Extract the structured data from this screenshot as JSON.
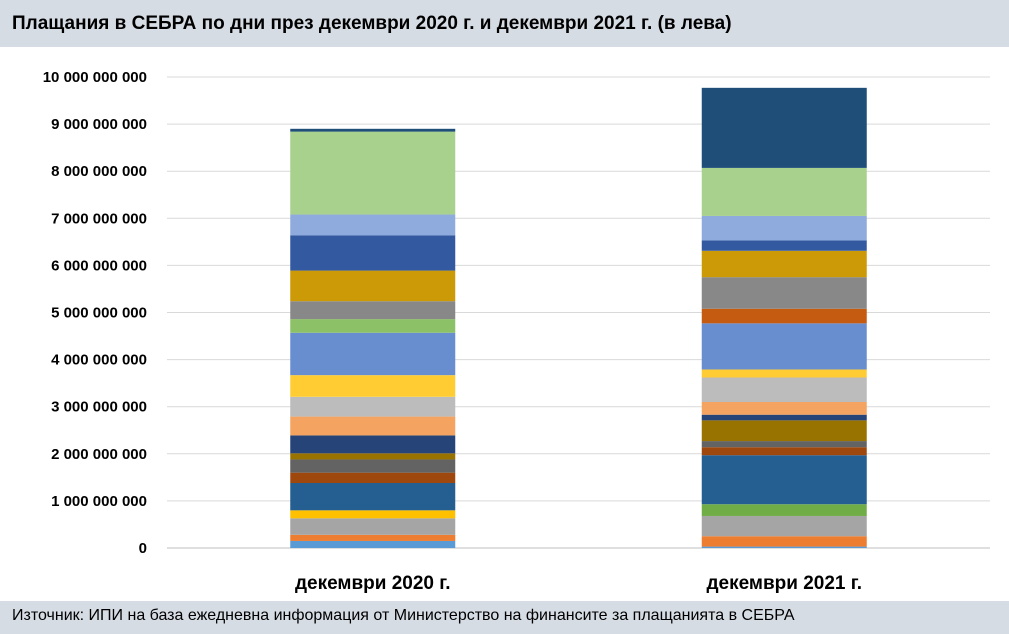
{
  "header": {
    "title": "Плащания в СЕБРА по дни през декември 2020 г. и декември 2021 г. (в лева)"
  },
  "footer": {
    "source": "Източник: ИПИ на база ежедневна информация от Министерство на финансите за плащанията в СЕБРА"
  },
  "chart_data": {
    "type": "bar",
    "stacked": true,
    "title": "Плащания в СЕБРА по дни през декември 2020 г. и декември 2021 г. (в лева)",
    "categories": [
      "декември 2020 г.",
      "декември 2021 г."
    ],
    "ylim": [
      0,
      10000000000
    ],
    "yticks": [
      0,
      1000000000,
      2000000000,
      3000000000,
      4000000000,
      5000000000,
      6000000000,
      7000000000,
      8000000000,
      9000000000,
      10000000000
    ],
    "ytick_labels": [
      "0",
      "1 000 000 000",
      "2 000 000 000",
      "3 000 000 000",
      "4 000 000 000",
      "5 000 000 000",
      "6 000 000 000",
      "7 000 000 000",
      "8 000 000 000",
      "9 000 000 000",
      "10 000 000 000"
    ],
    "grid": true,
    "legend": "none",
    "stacks": [
      {
        "category": "декември 2020 г.",
        "segments": [
          {
            "value": 150000000,
            "color": "#5b9bd5"
          },
          {
            "value": 130000000,
            "color": "#ed7d31"
          },
          {
            "value": 350000000,
            "color": "#a5a5a5"
          },
          {
            "value": 170000000,
            "color": "#ffc000"
          },
          {
            "value": 580000000,
            "color": "#255e91"
          },
          {
            "value": 220000000,
            "color": "#9e480e"
          },
          {
            "value": 280000000,
            "color": "#636363"
          },
          {
            "value": 130000000,
            "color": "#997300"
          },
          {
            "value": 380000000,
            "color": "#264478"
          },
          {
            "value": 400000000,
            "color": "#f4a460"
          },
          {
            "value": 420000000,
            "color": "#bcbcbc"
          },
          {
            "value": 460000000,
            "color": "#ffcd33"
          },
          {
            "value": 900000000,
            "color": "#698ed0"
          },
          {
            "value": 290000000,
            "color": "#8cc168"
          },
          {
            "value": 380000000,
            "color": "#888888"
          },
          {
            "value": 650000000,
            "color": "#cc9a06"
          },
          {
            "value": 750000000,
            "color": "#335aa1"
          },
          {
            "value": 440000000,
            "color": "#8faadc"
          },
          {
            "value": 1760000000,
            "color": "#a9d18e"
          },
          {
            "value": 60000000,
            "color": "#1f4e79"
          }
        ]
      },
      {
        "category": "декември 2021 г.",
        "segments": [
          {
            "value": 30000000,
            "color": "#5b9bd5"
          },
          {
            "value": 220000000,
            "color": "#ed7d31"
          },
          {
            "value": 430000000,
            "color": "#a5a5a5"
          },
          {
            "value": 250000000,
            "color": "#70ad47"
          },
          {
            "value": 1040000000,
            "color": "#255e91"
          },
          {
            "value": 170000000,
            "color": "#9e480e"
          },
          {
            "value": 130000000,
            "color": "#636363"
          },
          {
            "value": 440000000,
            "color": "#997300"
          },
          {
            "value": 120000000,
            "color": "#264478"
          },
          {
            "value": 270000000,
            "color": "#f4a460"
          },
          {
            "value": 520000000,
            "color": "#bcbcbc"
          },
          {
            "value": 170000000,
            "color": "#ffcd33"
          },
          {
            "value": 980000000,
            "color": "#698ed0"
          },
          {
            "value": 310000000,
            "color": "#c55a11"
          },
          {
            "value": 670000000,
            "color": "#888888"
          },
          {
            "value": 560000000,
            "color": "#cc9a06"
          },
          {
            "value": 220000000,
            "color": "#335aa1"
          },
          {
            "value": 520000000,
            "color": "#8faadc"
          },
          {
            "value": 1020000000,
            "color": "#a9d18e"
          },
          {
            "value": 1700000000,
            "color": "#1f4e79"
          }
        ]
      }
    ]
  }
}
